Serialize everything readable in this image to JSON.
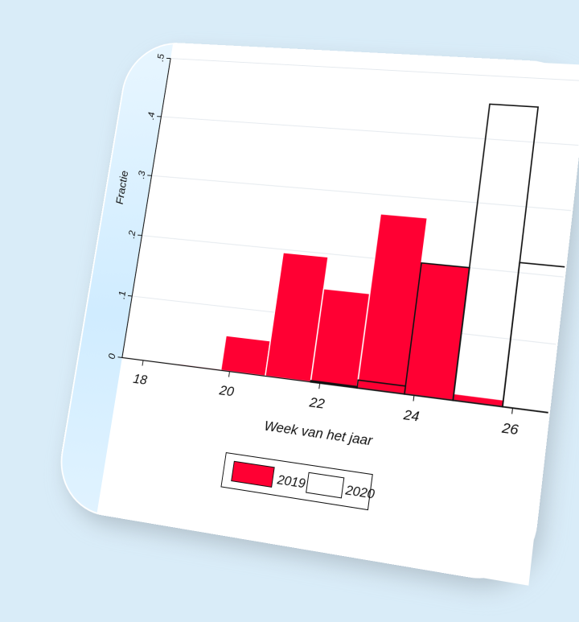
{
  "chart_data": {
    "type": "bar",
    "xlabel": "Week van het jaar",
    "ylabel": "Fractie",
    "xlim": [
      17.5,
      26.7
    ],
    "ylim": [
      0,
      0.5
    ],
    "x_ticks": [
      "18",
      "20",
      "22",
      "24",
      "26"
    ],
    "y_ticks": [
      "0",
      ".1",
      ".2",
      ".3",
      ".4",
      ".5"
    ],
    "bin_width": 1,
    "legend_position": "bottom",
    "series": [
      {
        "name": "2019",
        "color": "#ff0033",
        "bins": [
          {
            "start": 18.8,
            "value": 0.002
          },
          {
            "start": 19.8,
            "value": 0.055
          },
          {
            "start": 20.8,
            "value": 0.195
          },
          {
            "start": 21.8,
            "value": 0.145
          },
          {
            "start": 22.8,
            "value": 0.27
          },
          {
            "start": 23.8,
            "value": 0.2
          },
          {
            "start": 24.8,
            "value": 0.01
          },
          {
            "start": 25.8,
            "value": 0.0
          }
        ]
      },
      {
        "name": "2020",
        "color": "#ffffff",
        "bins": [
          {
            "start": 21.8,
            "value": 0.002
          },
          {
            "start": 22.8,
            "value": 0.012
          },
          {
            "start": 23.8,
            "value": 0.2
          },
          {
            "start": 24.8,
            "value": 0.455
          },
          {
            "start": 25.8,
            "value": 0.215
          }
        ]
      }
    ]
  }
}
